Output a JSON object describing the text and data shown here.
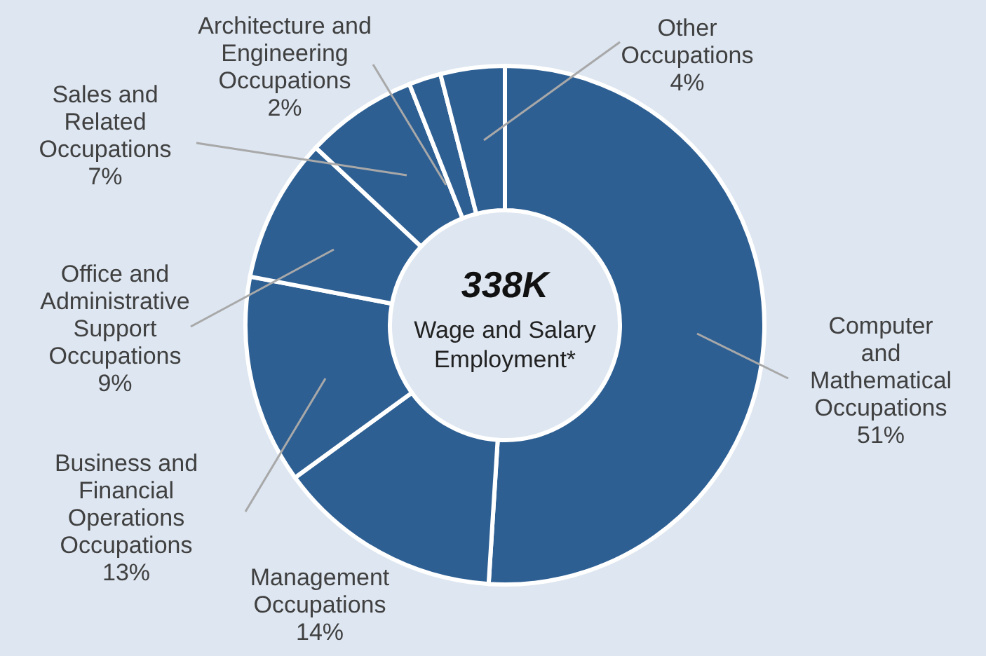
{
  "chart_data": {
    "type": "donut",
    "categories": [
      "Computer and Mathematical Occupations",
      "Management Occupations",
      "Business and Financial Operations Occupations",
      "Office and Administrative Support Occupations",
      "Sales and Related Occupations",
      "Architecture and Engineering Occupations",
      "Other Occupations"
    ],
    "values": [
      51,
      14,
      13,
      9,
      7,
      2,
      4
    ],
    "colors": [
      "#2d5f93",
      "#2d5f93",
      "#2d5f93",
      "#2d5f93",
      "#2d5f93",
      "#2d5f93",
      "#2d5f93"
    ],
    "value_labels": [
      "51%",
      "14%",
      "13%",
      "9%",
      "7%",
      "2%",
      "4%"
    ],
    "annotations": [
      "338K",
      "Wage and Salary Employment*"
    ]
  }
}
